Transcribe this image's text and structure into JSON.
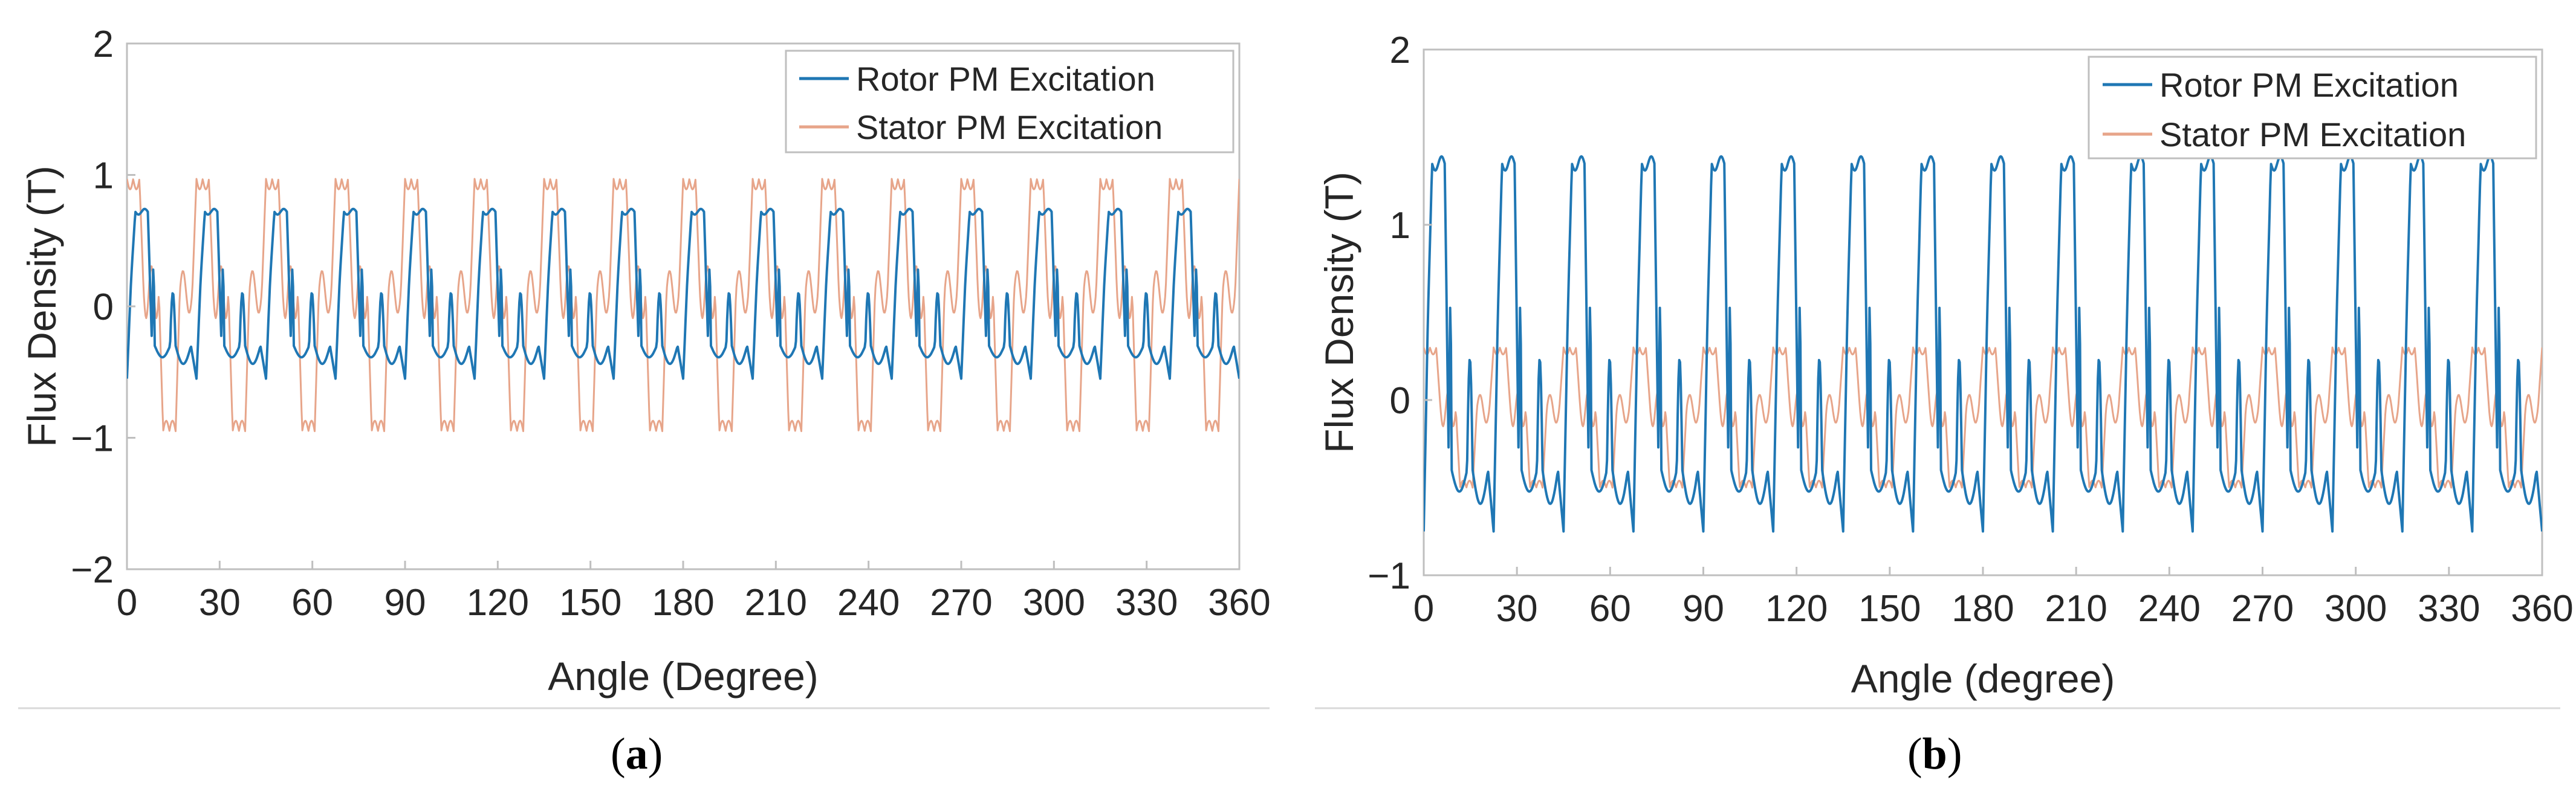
{
  "chart_data": [
    {
      "type": "line",
      "panel_label": "a",
      "title": "",
      "xlabel": "Angle (Degree)",
      "ylabel": "Flux Density (T)",
      "xlim": [
        0,
        360
      ],
      "ylim": [
        -2,
        2
      ],
      "xticks": [
        "0",
        "30",
        "60",
        "90",
        "120",
        "150",
        "180",
        "210",
        "240",
        "270",
        "300",
        "330",
        "360"
      ],
      "yticks": [
        "−2",
        "−1",
        "0",
        "1",
        "2"
      ],
      "legend_position": "top-right",
      "grid": false,
      "series": [
        {
          "name": "Rotor PM Excitation",
          "color": "#1f77b4",
          "style": "solid",
          "period_deg": 22.5,
          "peak": 0.72,
          "trough": -0.55,
          "plateau": -0.3
        },
        {
          "name": "Stator PM Excitation",
          "color": "#e7a58a",
          "style": "solid",
          "period_deg": 22.5,
          "peak": 0.97,
          "trough": -0.95,
          "ripple": 0.2
        }
      ]
    },
    {
      "type": "line",
      "panel_label": "b",
      "title": "",
      "xlabel": "Angle (degree)",
      "ylabel": "Flux Density (T)",
      "xlim": [
        0,
        360
      ],
      "ylim": [
        -1,
        2
      ],
      "xticks": [
        "0",
        "30",
        "60",
        "90",
        "120",
        "150",
        "180",
        "210",
        "240",
        "270",
        "300",
        "330",
        "360"
      ],
      "yticks": [
        "−1",
        "0",
        "1",
        "2"
      ],
      "legend_position": "top-right",
      "grid": false,
      "series": [
        {
          "name": "Rotor PM Excitation",
          "color": "#1f77b4",
          "style": "solid",
          "period_deg": 22.5,
          "peak": 1.35,
          "trough": -0.75,
          "plateau": -0.4
        },
        {
          "name": "Stator PM Excitation",
          "color": "#e7a58a",
          "style": "solid",
          "period_deg": 22.5,
          "peak": 0.3,
          "trough": -0.5,
          "ripple": 0.1
        }
      ]
    }
  ]
}
